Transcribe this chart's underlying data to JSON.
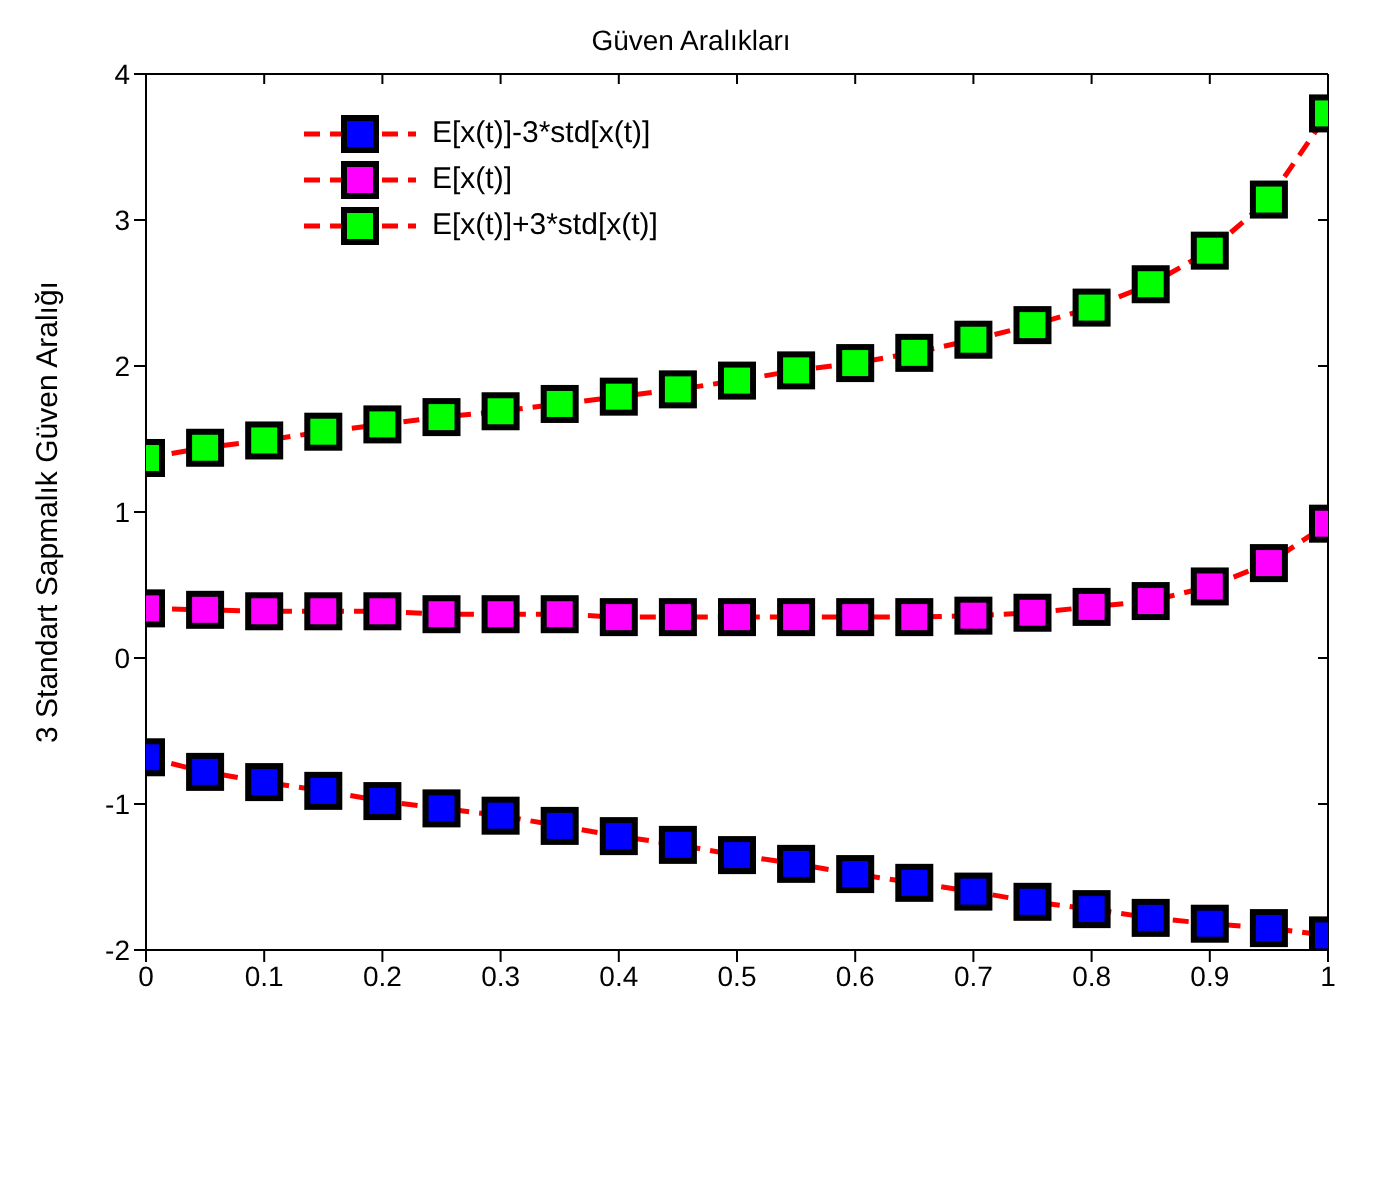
{
  "chart_data": {
    "type": "line",
    "title": "Güven Aralıkları",
    "ylabel": "3 Standart Sapmalık Güven Aralığı",
    "x": [
      0,
      0.05,
      0.1,
      0.15,
      0.2,
      0.25,
      0.3,
      0.35,
      0.4,
      0.45,
      0.5,
      0.55,
      0.6,
      0.65,
      0.7,
      0.75,
      0.8,
      0.85,
      0.9,
      0.95,
      1
    ],
    "series": [
      {
        "name": "E[x(t)]-3*std[x(t)]",
        "color": "#0000ff",
        "values": [
          -0.68,
          -0.78,
          -0.85,
          -0.91,
          -0.98,
          -1.03,
          -1.08,
          -1.15,
          -1.22,
          -1.28,
          -1.35,
          -1.41,
          -1.48,
          -1.54,
          -1.6,
          -1.67,
          -1.72,
          -1.78,
          -1.82,
          -1.85,
          -1.9
        ]
      },
      {
        "name": "E[x(t)]",
        "color": "#ff00ff",
        "values": [
          0.34,
          0.33,
          0.32,
          0.32,
          0.32,
          0.3,
          0.3,
          0.3,
          0.28,
          0.28,
          0.28,
          0.28,
          0.28,
          0.28,
          0.29,
          0.31,
          0.35,
          0.39,
          0.49,
          0.65,
          0.92
        ]
      },
      {
        "name": "E[x(t)]+3*std[x(t)]",
        "color": "#00ff00",
        "values": [
          1.37,
          1.44,
          1.49,
          1.55,
          1.6,
          1.65,
          1.69,
          1.74,
          1.79,
          1.84,
          1.9,
          1.97,
          2.02,
          2.09,
          2.18,
          2.28,
          2.4,
          2.56,
          2.79,
          3.14,
          3.73
        ]
      }
    ],
    "xlim": [
      0,
      1
    ],
    "xticks": [
      0,
      0.1,
      0.2,
      0.3,
      0.4,
      0.5,
      0.6,
      0.7,
      0.8,
      0.9,
      1
    ],
    "ylim": [
      -2,
      4
    ],
    "yticks": [
      -2,
      -1,
      0,
      1,
      2,
      3,
      4
    ],
    "grid": false,
    "legend": "top left",
    "marker": "square",
    "line_style": "dashed"
  }
}
